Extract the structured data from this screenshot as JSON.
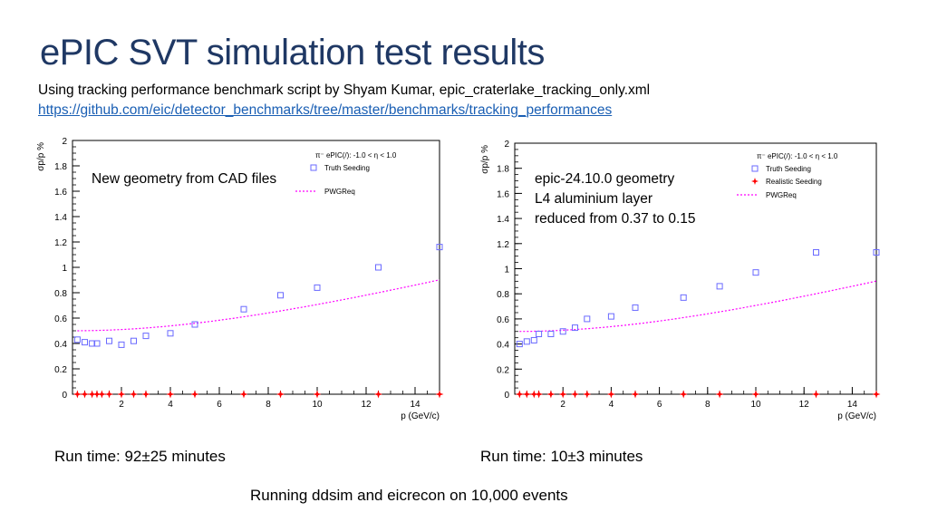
{
  "slide": {
    "title": "ePIC SVT simulation test results",
    "subtitle": "Using tracking performance benchmark script by Shyam Kumar, epic_craterlake_tracking_only.xml",
    "link": "https://github.com/eic/detector_benchmarks/tree/master/benchmarks/tracking_performances",
    "left_annotation": "New geometry from CAD files",
    "right_annotation_lines": [
      "epic-24.10.0 geometry",
      "L4 aluminium layer",
      "reduced from 0.37 to 0.15"
    ],
    "left_runtime": "Run time: 92±25 minutes",
    "right_runtime": "Run time: 10±3 minutes",
    "footer": "Running ddsim and eicrecon on 10,000 events"
  },
  "colors": {
    "title": "#1f3864",
    "link": "#1a5fb4",
    "truth": "#6a6aff",
    "realistic": "#ff0000",
    "pwgreq": "#ff00ff"
  },
  "chart_data": [
    {
      "type": "scatter",
      "title": "",
      "xlabel": "p (GeV/c)",
      "ylabel": "σp/p %",
      "xlim": [
        0,
        15
      ],
      "ylim": [
        0,
        2
      ],
      "x_ticks": [
        "2",
        "4",
        "6",
        "8",
        "10",
        "12",
        "14"
      ],
      "y_ticks": [
        "0",
        "0.2",
        "0.4",
        "0.6",
        "0.8",
        "1",
        "1.2",
        "1.4",
        "1.6",
        "1.8",
        "2"
      ],
      "legend_header": "π⁻ ePIC(/): -1.0 < η < 1.0",
      "legend_position": "top-right",
      "series": [
        {
          "name": "Truth Seeding",
          "marker": "open-square",
          "x": [
            0.2,
            0.5,
            0.8,
            1.0,
            1.5,
            2.0,
            2.5,
            3.0,
            4.0,
            5.0,
            7.0,
            8.5,
            10.0,
            12.5,
            15.0
          ],
          "y": [
            0.43,
            0.41,
            0.4,
            0.4,
            0.42,
            0.39,
            0.42,
            0.46,
            0.48,
            0.55,
            0.67,
            0.78,
            0.84,
            1.0,
            1.16
          ]
        },
        {
          "name": "PWGReq",
          "style": "dotted-line",
          "a": 0.05,
          "b": 0.5
        }
      ],
      "markers_without_legend": {
        "marker": "red-star",
        "x": [
          0.2,
          0.5,
          0.8,
          1.0,
          1.2,
          1.5,
          2.0,
          2.5,
          3.0,
          4.0,
          5.0,
          7.0,
          8.5,
          10.0,
          12.5,
          15.0
        ],
        "y": [
          0,
          0,
          0,
          0,
          0,
          0,
          0,
          0,
          0,
          0,
          0,
          0,
          0,
          0,
          0,
          0
        ]
      }
    },
    {
      "type": "scatter",
      "title": "",
      "xlabel": "p (GeV/c)",
      "ylabel": "σp/p %",
      "xlim": [
        0,
        15
      ],
      "ylim": [
        0,
        2
      ],
      "x_ticks": [
        "2",
        "4",
        "6",
        "8",
        "10",
        "12",
        "14"
      ],
      "y_ticks": [
        "0",
        "0.2",
        "0.4",
        "0.6",
        "0.8",
        "1",
        "1.2",
        "1.4",
        "1.6",
        "1.8",
        "2"
      ],
      "legend_header": "π⁻ ePIC(/): -1.0 < η < 1.0",
      "legend_position": "top-right",
      "series": [
        {
          "name": "Truth Seeding",
          "marker": "open-square",
          "x": [
            0.2,
            0.5,
            0.8,
            1.0,
            1.5,
            2.0,
            2.5,
            3.0,
            4.0,
            5.0,
            7.0,
            8.5,
            10.0,
            12.5,
            15.0
          ],
          "y": [
            0.4,
            0.42,
            0.43,
            0.48,
            0.48,
            0.5,
            0.53,
            0.6,
            0.62,
            0.69,
            0.77,
            0.86,
            0.97,
            1.13,
            1.13
          ]
        },
        {
          "name": "Realistic Seeding",
          "marker": "red-star",
          "x": [
            0.2,
            0.5,
            0.8,
            1.0,
            1.5,
            2.0,
            2.5,
            3.0,
            4.0,
            5.0,
            7.0,
            8.5,
            10.0,
            12.5,
            15.0
          ],
          "y": [
            0,
            0,
            0,
            0,
            0,
            0,
            0,
            0,
            0,
            0,
            0,
            0,
            0,
            0,
            0
          ]
        },
        {
          "name": "PWGReq",
          "style": "dotted-line",
          "a": 0.05,
          "b": 0.5
        }
      ]
    }
  ]
}
